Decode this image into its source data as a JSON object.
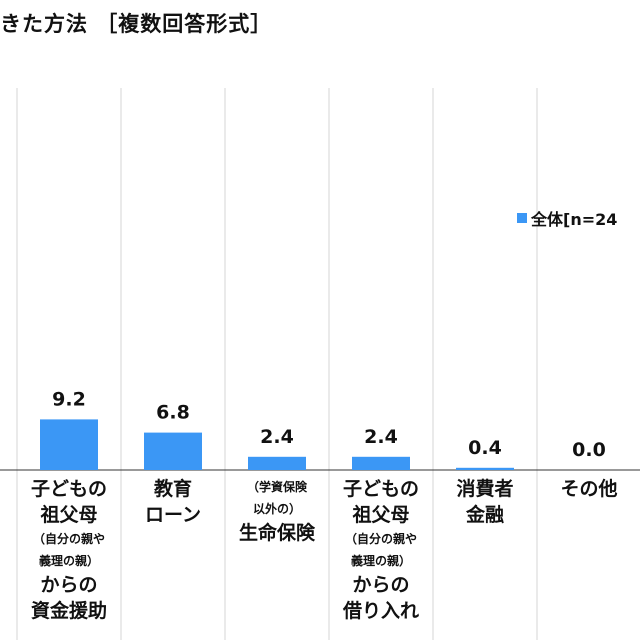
{
  "title": "きた方法 ［複数回答形式］",
  "colors": {
    "bar": "#3b97f5",
    "grid": "#d4d4d4",
    "axis": "#333333"
  },
  "legend": {
    "label": "全体[n=24"
  },
  "chart_data": {
    "type": "bar",
    "categories": [
      "子どもの祖父母（自分の親や義理の親）からの資金援助",
      "教育ローン",
      "（学資保険以外の）生命保険",
      "子どもの祖父母（自分の親や義理の親）からの借り入れ",
      "消費者金融",
      "その他"
    ],
    "category_lines": [
      [
        {
          "text": "子どもの",
          "size": "big"
        },
        {
          "text": "祖父母",
          "size": "big"
        },
        {
          "text": "（自分の親や",
          "size": "small"
        },
        {
          "text": "義理の親）",
          "size": "small"
        },
        {
          "text": "からの",
          "size": "big"
        },
        {
          "text": "資金援助",
          "size": "big"
        }
      ],
      [
        {
          "text": "教育",
          "size": "big"
        },
        {
          "text": "ローン",
          "size": "big"
        }
      ],
      [
        {
          "text": "（学資保険",
          "size": "small"
        },
        {
          "text": "以外の）",
          "size": "small"
        },
        {
          "text": "生命保険",
          "size": "big"
        }
      ],
      [
        {
          "text": "子どもの",
          "size": "big"
        },
        {
          "text": "祖父母",
          "size": "big"
        },
        {
          "text": "（自分の親や",
          "size": "small"
        },
        {
          "text": "義理の親）",
          "size": "small"
        },
        {
          "text": "からの",
          "size": "big"
        },
        {
          "text": "借り入れ",
          "size": "big"
        }
      ],
      [
        {
          "text": "消費者",
          "size": "big"
        },
        {
          "text": "金融",
          "size": "big"
        }
      ],
      [
        {
          "text": "その他",
          "size": "big"
        }
      ]
    ],
    "series": [
      {
        "name": "全体[n=24",
        "values": [
          9.2,
          6.8,
          2.4,
          2.4,
          0.4,
          0.0
        ],
        "labels": [
          "9.2",
          "6.8",
          "2.4",
          "2.4",
          "0.4",
          "0.0"
        ]
      }
    ],
    "ylim": [
      0,
      60
    ],
    "grid": "vertical separators",
    "legend_position": "top-right"
  }
}
